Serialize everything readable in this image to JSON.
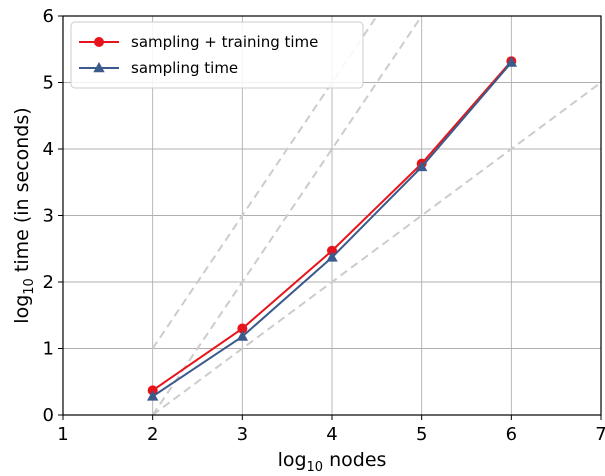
{
  "chart_data": {
    "type": "line",
    "title": "",
    "xlabel": {
      "base": "log",
      "sub": "10",
      "rest": " nodes"
    },
    "ylabel": {
      "base": "log",
      "sub": "10",
      "rest": " time (in seconds)"
    },
    "xlim": [
      1,
      7
    ],
    "ylim": [
      0,
      6
    ],
    "xticks": [
      "1",
      "2",
      "3",
      "4",
      "5",
      "6",
      "7"
    ],
    "yticks": [
      "0",
      "1",
      "2",
      "3",
      "4",
      "5",
      "6"
    ],
    "grid": true,
    "legend_position": "top-left",
    "series": [
      {
        "name": "sampling + training time",
        "color": "#e8141b",
        "marker": "circle",
        "x": [
          2,
          3,
          4,
          5,
          6
        ],
        "y": [
          0.37,
          1.3,
          2.47,
          3.78,
          5.32
        ]
      },
      {
        "name": "sampling time",
        "color": "#3b5b8c",
        "marker": "triangle",
        "x": [
          2,
          3,
          4,
          5,
          6
        ],
        "y": [
          0.28,
          1.18,
          2.37,
          3.73,
          5.3
        ]
      }
    ],
    "reference_lines": [
      {
        "style": "dashed",
        "color": "#cccccc",
        "x": [
          2,
          7
        ],
        "y": [
          1,
          11
        ]
      },
      {
        "style": "dashed",
        "color": "#cccccc",
        "x": [
          2,
          7
        ],
        "y": [
          0,
          10
        ]
      },
      {
        "style": "dashed",
        "color": "#cccccc",
        "x": [
          2,
          7
        ],
        "y": [
          0,
          5
        ]
      }
    ]
  }
}
